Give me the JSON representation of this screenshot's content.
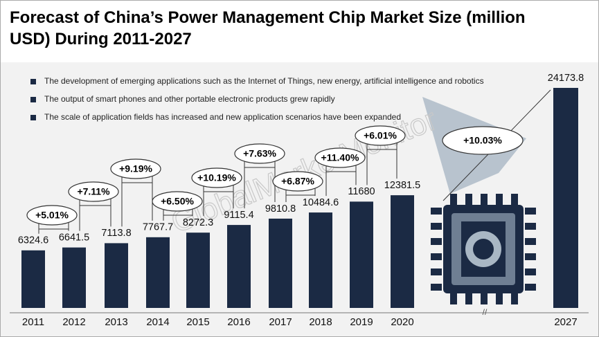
{
  "chart_data": {
    "type": "bar",
    "title": "Forecast of China’s Power Management Chip Market Size (million USD) During 2011-2027",
    "categories": [
      "2011",
      "2012",
      "2013",
      "2014",
      "2015",
      "2016",
      "2017",
      "2018",
      "2019",
      "2020",
      "2027"
    ],
    "values": [
      6324.6,
      6641.5,
      7113.8,
      7767.7,
      8272.3,
      9115.4,
      9810.8,
      10484.6,
      11680,
      12381.5,
      24173.8
    ],
    "color": "#1b2a44",
    "growth": {
      "values": [
        5.01,
        7.11,
        9.19,
        6.5,
        10.19,
        7.63,
        6.87,
        11.4,
        6.01,
        10.03
      ],
      "value_labels": [
        "+5.01%",
        "+7.11%",
        "+9.19%",
        "+6.50%",
        "+10.19%",
        "+7.63%",
        "+6.87%",
        "+11.40%",
        "+6.01%",
        "+10.03%"
      ]
    },
    "notes": [
      "The development of emerging applications such as the Internet of Things, new energy, artificial intelligence and robotics",
      "The output of smart phones and other portable electronic products grew rapidly",
      "The scale of application fields has increased and new application scenarios have been expanded"
    ],
    "watermark": "GlobalMarketMonitor"
  }
}
